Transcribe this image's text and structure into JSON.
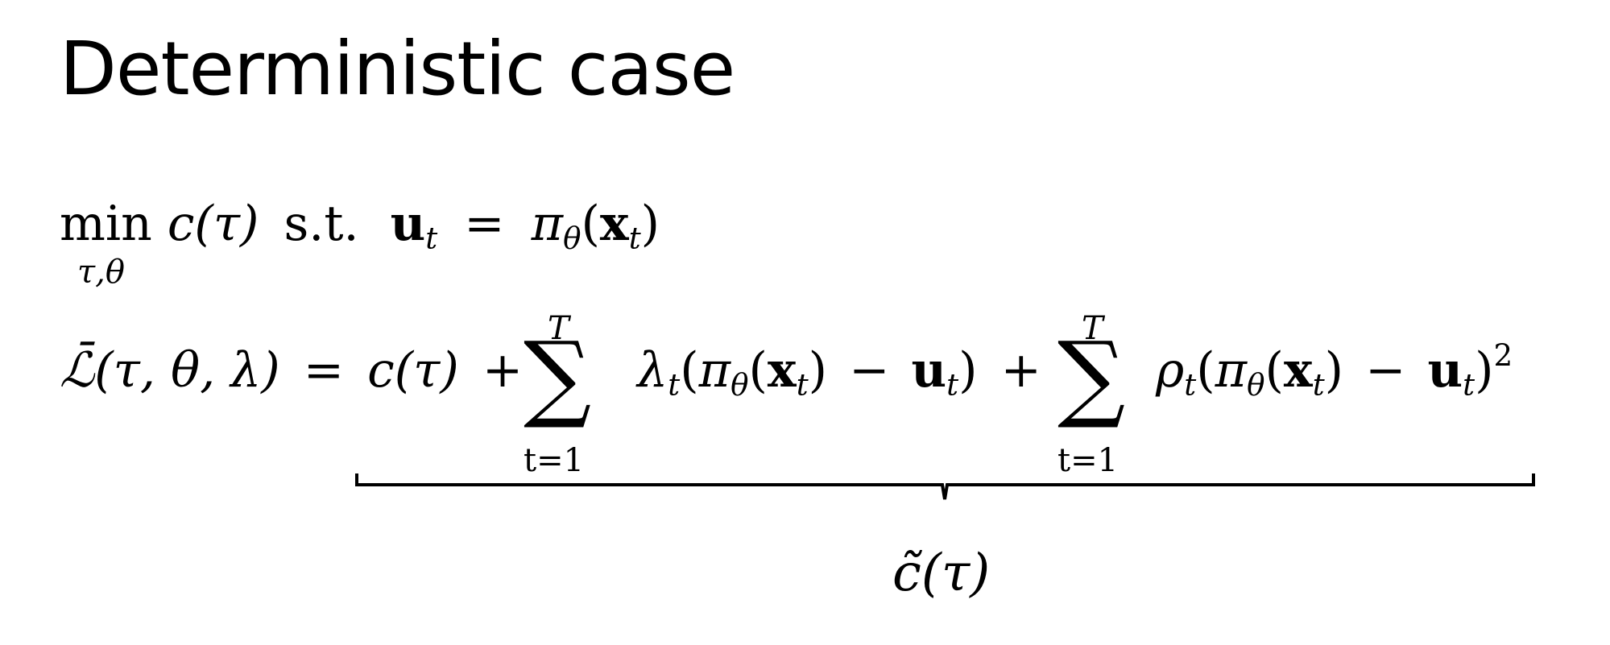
{
  "slide": {
    "title": "Deterministic case"
  },
  "equation1": {
    "min": "min",
    "subscript": "τ,θ",
    "objective": "c(τ)",
    "st": "s.t.",
    "u": "u",
    "u_sub": "t",
    "equals": "=",
    "pi": "π",
    "pi_sub": "θ",
    "open": "(",
    "x": "x",
    "x_sub": "t",
    "close": ")"
  },
  "equation2": {
    "lhs_symbol": "ℒ̄",
    "lhs_args": "(τ, θ, λ)",
    "equals": "=",
    "c_term": "c(τ)",
    "plus1": "+",
    "sum1_upper": "T",
    "sum1_lower": "t=1",
    "sum_symbol": "∑",
    "lambda": "λ",
    "lambda_sub": "t",
    "term1_open": "(",
    "pi": "π",
    "pi_sub": "θ",
    "x_open": "(",
    "x": "x",
    "x_sub": "t",
    "x_close": ")",
    "minus": "−",
    "u": "u",
    "u_sub": "t",
    "term1_close": ")",
    "plus2": "+",
    "sum2_upper": "T",
    "sum2_lower": "t=1",
    "rho": "ρ",
    "rho_sub": "t",
    "term2_open": "(",
    "term2_close": ")",
    "power": "2"
  },
  "underbrace": {
    "label": "c̃(τ)"
  }
}
